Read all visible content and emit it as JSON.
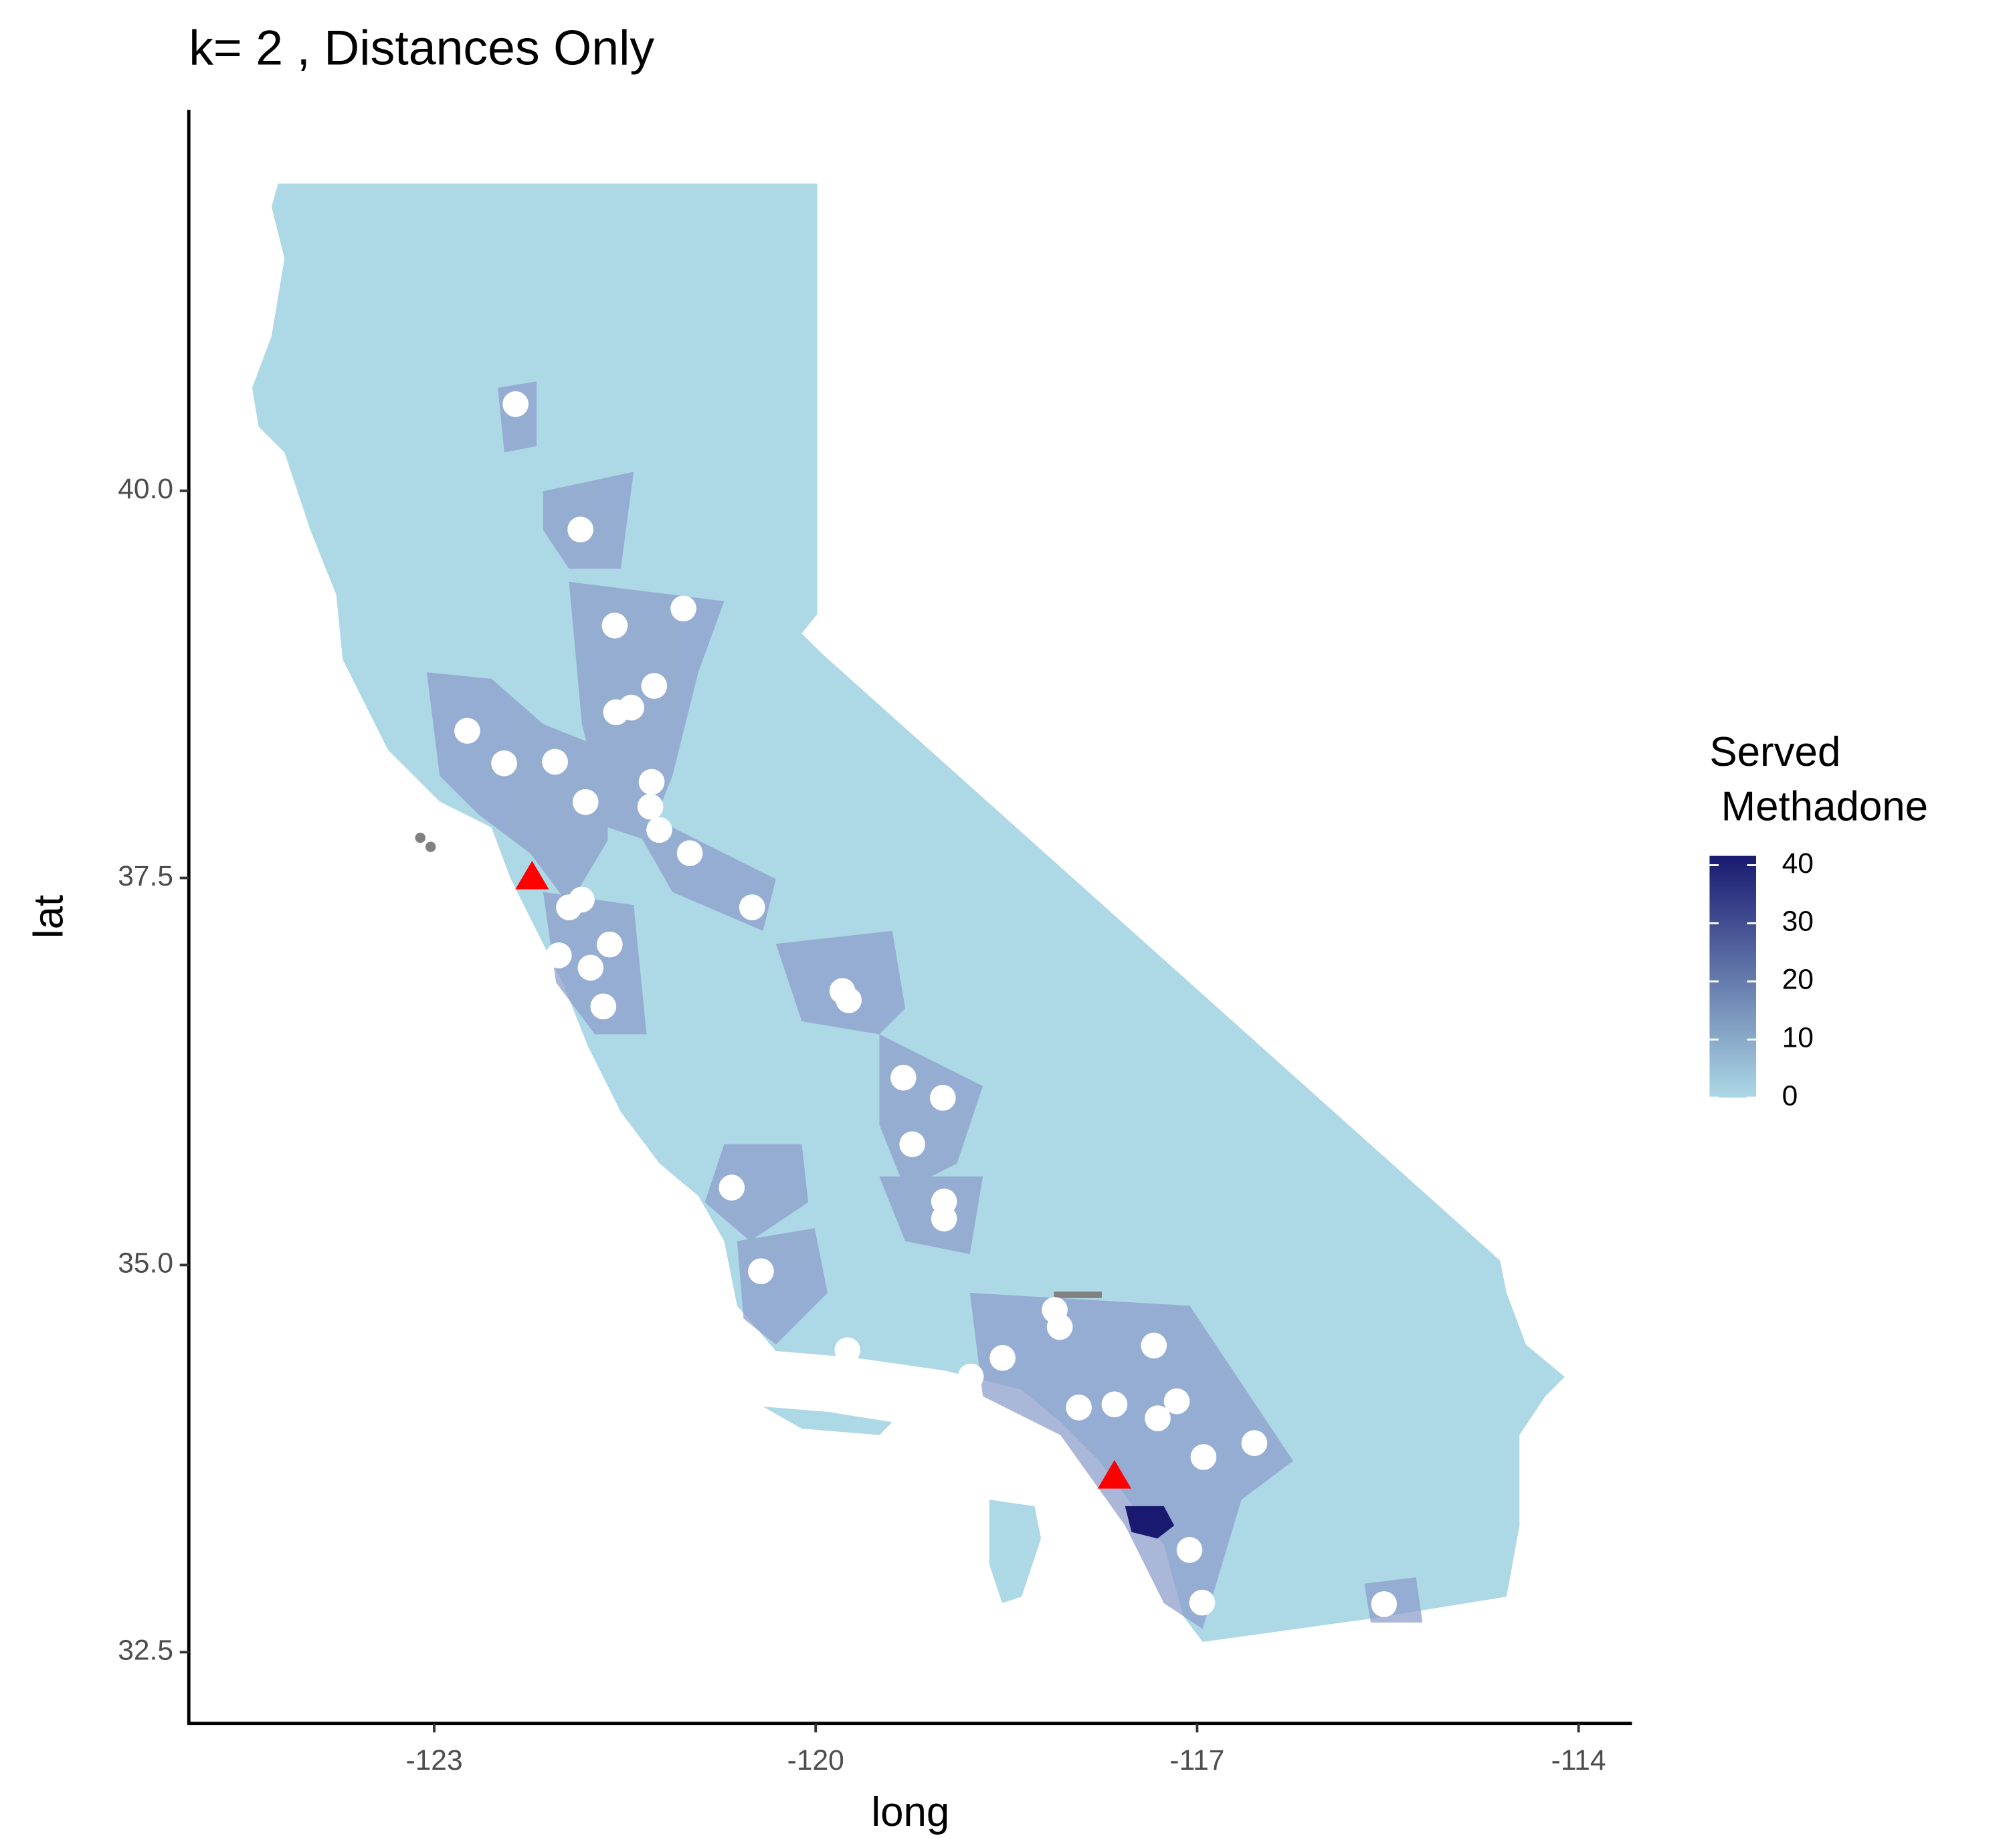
{
  "chart_data": {
    "type": "map",
    "title": "k= 2 , Distances Only",
    "x_label": "long",
    "y_label": "lat",
    "xlim": [
      -124.93,
      -113.58
    ],
    "ylim": [
      32.04,
      42.46
    ],
    "xticks": [
      -123,
      -120,
      -117,
      -114
    ],
    "yticks": [
      {
        "value": 32.5,
        "label": "32.5"
      },
      {
        "value": 35,
        "label": "35.0"
      },
      {
        "value": 37.5,
        "label": "37.5"
      },
      {
        "value": 40,
        "label": "40.0"
      }
    ],
    "legend_title": [
      "Served",
      " Methadone"
    ],
    "legend_colors": [
      "#add8e6",
      "#191970"
    ],
    "legend_lim": [
      0,
      41.6
    ],
    "legend_ticks": [
      0,
      10,
      20,
      30,
      40
    ],
    "points": {
      "color": "#ffffff",
      "x": [
        -122.36,
        -121.85,
        -121.04,
        -121.58,
        -121.27,
        -121.45,
        -121.57,
        -122.74,
        -122.45,
        -122.05,
        -121.29,
        -121.81,
        -121.3,
        -121.23,
        -120.99,
        -120.5,
        -121.62,
        -121.94,
        -121.84,
        -122.02,
        -121.77,
        -121.67,
        -119.79,
        -119.74,
        -119.31,
        -119.0,
        -119.24,
        -120.66,
        -118.99,
        -118.99,
        -120.43,
        -118.12,
        -118.08,
        -117.34,
        -119.75,
        -118.53,
        -118.78,
        -116.55,
        -116.95,
        -115.53,
        -116.96,
        -117.16,
        -117.31,
        -117.65,
        -117.93,
        -117.06
      ],
      "y": [
        40.56,
        39.75,
        39.24,
        39.13,
        38.74,
        38.6,
        38.57,
        38.45,
        38.24,
        38.25,
        38.12,
        37.99,
        37.96,
        37.81,
        37.66,
        37.31,
        37.07,
        37.31,
        37.36,
        37.0,
        36.92,
        36.67,
        36.77,
        36.71,
        36.21,
        36.08,
        35.78,
        35.5,
        35.41,
        35.3,
        34.96,
        34.71,
        34.6,
        34.48,
        34.45,
        34.4,
        34.28,
        33.85,
        33.76,
        32.81,
        32.82,
        34.12,
        34.01,
        34.1,
        34.08,
        33.16
      ]
    },
    "facilities": {
      "color": "#ff0000",
      "x": [
        -122.23,
        -117.65
      ],
      "y": [
        37.51,
        33.64
      ]
    }
  }
}
